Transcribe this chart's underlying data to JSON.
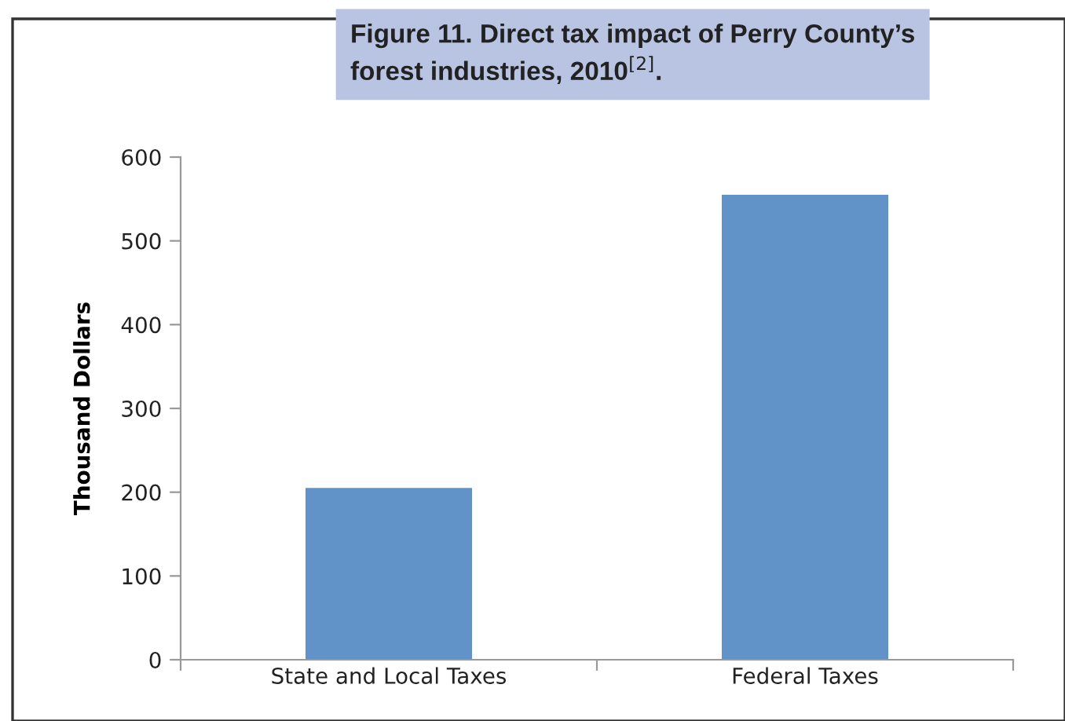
{
  "chart_data": {
    "type": "bar",
    "title": "Figure 11. Direct tax impact of Perry County’s\nforest industries, 2010$^{[2]}$.",
    "ylabel": "Thousand Dollars",
    "categories": [
      "State and Local Taxes",
      "Federal Taxes"
    ],
    "values": [
      205,
      555
    ],
    "color": "#6193c9",
    "ylim": [
      0,
      600
    ],
    "yticks": [
      0,
      100,
      200,
      300,
      400,
      500,
      600
    ],
    "grid": false
  }
}
